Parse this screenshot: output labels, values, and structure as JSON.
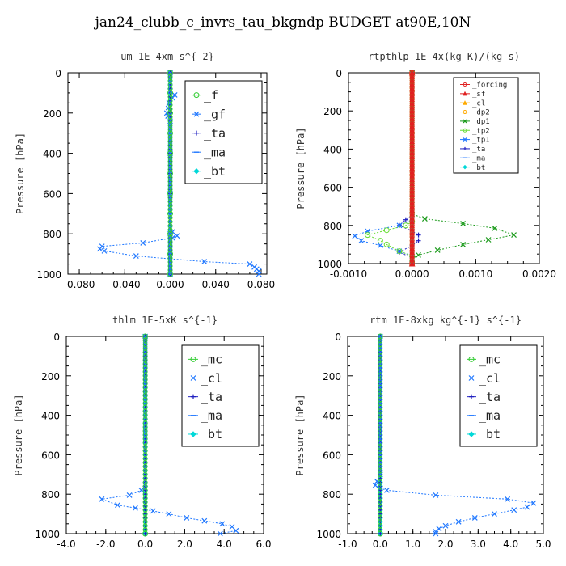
{
  "figure_title": "jan24_clubb_c_invrs_tau_bkgndp  BUDGET at90E,10N",
  "colors": {
    "green": "#33cc33",
    "dkgreen": "#1a9a1a",
    "blue": "#1f77ff",
    "navy": "#2020c0",
    "cyan": "#00d8d8",
    "red": "#e02020",
    "orange": "#ffaa00",
    "lightgreen": "#66dd33"
  },
  "chart_data": [
    {
      "type": "line",
      "title": "um  1E-4xm s^{-2}",
      "ylabel": "Pressure [hPa]",
      "xlim": [
        -0.09,
        0.085
      ],
      "ylim": [
        1000,
        0
      ],
      "y_inverted": true,
      "xticks": [
        -0.08,
        -0.04,
        0.0,
        0.04,
        0.08
      ],
      "xtick_labels": [
        "-0.080",
        "-0.040",
        "0.000",
        "0.040",
        "0.080"
      ],
      "yticks": [
        0,
        200,
        400,
        600,
        800,
        1000
      ],
      "ytick_labels": [
        "0",
        "200",
        "400",
        "600",
        "800",
        "1000"
      ],
      "legend_position": "top-right",
      "legend_font": 15,
      "series": [
        {
          "name": "_f",
          "color": "#33cc33",
          "marker": "circle",
          "points": [
            [
              0,
              0
            ],
            [
              0,
              100
            ],
            [
              0,
              200
            ],
            [
              0,
              300
            ],
            [
              0,
              400
            ],
            [
              0,
              500
            ],
            [
              0,
              600
            ],
            [
              0,
              700
            ],
            [
              0,
              800
            ],
            [
              0,
              900
            ],
            [
              0,
              1000
            ]
          ]
        },
        {
          "name": "_gf",
          "color": "#1f77ff",
          "marker": "x",
          "points": [
            [
              0,
              0
            ],
            [
              0,
              90
            ],
            [
              0.004,
              110
            ],
            [
              0.002,
              125
            ],
            [
              -0.001,
              150
            ],
            [
              -0.003,
              200
            ],
            [
              -0.002,
              215
            ],
            [
              0,
              240
            ],
            [
              0,
              400
            ],
            [
              0,
              600
            ],
            [
              0,
              750
            ],
            [
              0,
              800
            ],
            [
              0,
              1000
            ]
          ]
        },
        {
          "name": "_ta",
          "color": "#2020c0",
          "marker": "plus",
          "points": [
            [
              0,
              0
            ],
            [
              0,
              400
            ],
            [
              0,
              800
            ],
            [
              0,
              1000
            ]
          ]
        },
        {
          "name": "_ma",
          "color": "#1f77ff",
          "marker": "dash",
          "points": [
            [
              0,
              0
            ],
            [
              0,
              1000
            ]
          ]
        },
        {
          "name": "_bt",
          "color": "#00d8d8",
          "marker": "diamond",
          "points": [
            [
              0,
              0
            ],
            [
              0,
              1000
            ]
          ]
        },
        {
          "name": "",
          "color": "#1f77ff",
          "marker": "x",
          "points": [
            [
              0,
              770
            ],
            [
              0.002,
              790
            ],
            [
              0.006,
              810
            ],
            [
              0.002,
              820
            ],
            [
              -0.024,
              845
            ],
            [
              -0.06,
              862
            ],
            [
              -0.062,
              875
            ],
            [
              -0.058,
              885
            ],
            [
              -0.03,
              910
            ],
            [
              0.03,
              938
            ],
            [
              0.07,
              950
            ],
            [
              0.074,
              965
            ],
            [
              0.076,
              975
            ],
            [
              0.078,
              985
            ],
            [
              0.078,
              1000
            ]
          ]
        }
      ]
    },
    {
      "type": "line",
      "title": "rtpthlp  1E-4x(kg K)/(kg s)",
      "ylabel": "Pressure [hPa]",
      "xlim": [
        -0.001,
        0.002
      ],
      "ylim": [
        1000,
        0
      ],
      "y_inverted": true,
      "xticks": [
        -0.001,
        0.0,
        0.001,
        0.002
      ],
      "xtick_labels": [
        "-0.0010",
        "0.0000",
        "0.0010",
        "0.0020"
      ],
      "yticks": [
        0,
        200,
        400,
        600,
        800,
        1000
      ],
      "ytick_labels": [
        "0",
        "200",
        "400",
        "600",
        "800",
        "1000"
      ],
      "legend_position": "top-right",
      "legend_font": 9,
      "series": [
        {
          "name": "_forcing",
          "color": "#e02020",
          "marker": "circle",
          "points": [
            [
              0,
              0
            ],
            [
              0,
              1000
            ]
          ]
        },
        {
          "name": "_sf",
          "color": "#e02020",
          "marker": "triangle",
          "points": [
            [
              0,
              0
            ],
            [
              0,
              1000
            ]
          ]
        },
        {
          "name": "_cl",
          "color": "#ffaa00",
          "marker": "triangle",
          "points": [
            [
              0,
              0
            ],
            [
              0,
              1000
            ]
          ]
        },
        {
          "name": "_dp2",
          "color": "#ffaa00",
          "marker": "circle",
          "points": [
            [
              0,
              0
            ],
            [
              0,
              1000
            ]
          ]
        },
        {
          "name": "_dp1",
          "color": "#1a9a1a",
          "marker": "x",
          "points": [
            [
              0,
              0
            ],
            [
              0,
              740
            ],
            [
              0.0002,
              765
            ],
            [
              0.0008,
              790
            ],
            [
              0.0013,
              815
            ],
            [
              0.0016,
              850
            ],
            [
              0.0012,
              875
            ],
            [
              0.0008,
              900
            ],
            [
              0.0004,
              930
            ],
            [
              0.0001,
              955
            ],
            [
              0,
              975
            ],
            [
              0,
              1000
            ]
          ]
        },
        {
          "name": "_tp2",
          "color": "#66dd33",
          "marker": "circle",
          "points": [
            [
              0,
              0
            ],
            [
              0,
              780
            ],
            [
              -0.0001,
              800
            ],
            [
              -0.0004,
              825
            ],
            [
              -0.0007,
              850
            ],
            [
              -0.0005,
              880
            ],
            [
              -0.0004,
              900
            ],
            [
              -0.0002,
              935
            ],
            [
              0,
              960
            ],
            [
              0,
              1000
            ]
          ]
        },
        {
          "name": "_tp1",
          "color": "#1f77ff",
          "marker": "x",
          "points": [
            [
              0,
              0
            ],
            [
              0,
              770
            ],
            [
              -0.0002,
              800
            ],
            [
              -0.0007,
              830
            ],
            [
              -0.0009,
              855
            ],
            [
              -0.0008,
              880
            ],
            [
              -0.0005,
              905
            ],
            [
              -0.0002,
              935
            ],
            [
              0,
              960
            ],
            [
              0,
              1000
            ]
          ]
        },
        {
          "name": "_ta",
          "color": "#2020c0",
          "marker": "plus",
          "points": [
            [
              0,
              0
            ],
            [
              0,
              750
            ],
            [
              -0.0001,
              770
            ],
            [
              -0.0002,
              800
            ],
            [
              0,
              830
            ],
            [
              0.0001,
              850
            ],
            [
              0.0001,
              880
            ],
            [
              0,
              905
            ],
            [
              -0.0002,
              940
            ],
            [
              0,
              970
            ],
            [
              0,
              1000
            ]
          ]
        },
        {
          "name": "_ma",
          "color": "#1f77ff",
          "marker": "dash",
          "points": [
            [
              0,
              0
            ],
            [
              0,
              1000
            ]
          ]
        },
        {
          "name": "_bt",
          "color": "#00d8d8",
          "marker": "diamond",
          "points": [
            [
              0,
              0
            ],
            [
              0,
              1000
            ]
          ]
        }
      ]
    },
    {
      "type": "line",
      "title": "thlm  1E-5xK s^{-1}",
      "ylabel": "Pressure [hPa]",
      "xlim": [
        -4,
        6
      ],
      "ylim": [
        1000,
        0
      ],
      "y_inverted": true,
      "xticks": [
        -4,
        -2,
        0,
        2,
        4,
        6
      ],
      "xtick_labels": [
        "-4.0",
        "-2.0",
        "0.0",
        "2.0",
        "4.0",
        "6.0"
      ],
      "yticks": [
        0,
        200,
        400,
        600,
        800,
        1000
      ],
      "ytick_labels": [
        "0",
        "200",
        "400",
        "600",
        "800",
        "1000"
      ],
      "legend_position": "top-right",
      "legend_font": 15,
      "series": [
        {
          "name": "_mc",
          "color": "#33cc33",
          "marker": "circle",
          "points": [
            [
              0,
              0
            ],
            [
              0,
              1000
            ]
          ]
        },
        {
          "name": "_cl",
          "color": "#1f77ff",
          "marker": "x",
          "points": [
            [
              0,
              0
            ],
            [
              0,
              770
            ],
            [
              -0.2,
              780
            ],
            [
              -0.8,
              805
            ],
            [
              -2.2,
              825
            ],
            [
              -1.4,
              855
            ],
            [
              -0.5,
              870
            ],
            [
              0.4,
              885
            ],
            [
              1.2,
              900
            ],
            [
              2.1,
              920
            ],
            [
              3,
              935
            ],
            [
              3.9,
              950
            ],
            [
              4.4,
              965
            ],
            [
              4.6,
              985
            ],
            [
              3.8,
              1000
            ]
          ]
        },
        {
          "name": "_ta",
          "color": "#2020c0",
          "marker": "plus",
          "points": [
            [
              0,
              0
            ],
            [
              0,
              1000
            ]
          ]
        },
        {
          "name": "_ma",
          "color": "#1f77ff",
          "marker": "dash",
          "points": [
            [
              0,
              0
            ],
            [
              0,
              1000
            ]
          ]
        },
        {
          "name": "_bt",
          "color": "#00d8d8",
          "marker": "diamond",
          "points": [
            [
              0,
              0
            ],
            [
              0,
              1000
            ]
          ]
        }
      ]
    },
    {
      "type": "line",
      "title": "rtm  1E-8xkg kg^{-1} s^{-1}",
      "ylabel": "Pressure [hPa]",
      "xlim": [
        -1,
        5
      ],
      "ylim": [
        1000,
        0
      ],
      "y_inverted": true,
      "xticks": [
        -1,
        0,
        1,
        2,
        3,
        4,
        5
      ],
      "xtick_labels": [
        "-1.0",
        "0.0",
        "1.0",
        "2.0",
        "3.0",
        "4.0",
        "5.0"
      ],
      "yticks": [
        0,
        200,
        400,
        600,
        800,
        1000
      ],
      "ytick_labels": [
        "0",
        "200",
        "400",
        "600",
        "800",
        "1000"
      ],
      "legend_position": "top-right",
      "legend_font": 15,
      "series": [
        {
          "name": "_mc",
          "color": "#33cc33",
          "marker": "circle",
          "points": [
            [
              0,
              0
            ],
            [
              0,
              1000
            ]
          ]
        },
        {
          "name": "_cl",
          "color": "#1f77ff",
          "marker": "x",
          "points": [
            [
              0,
              0
            ],
            [
              0,
              700
            ],
            [
              -0.1,
              735
            ],
            [
              -0.15,
              755
            ],
            [
              0,
              770
            ],
            [
              0.2,
              780
            ],
            [
              1.7,
              805
            ],
            [
              3.9,
              825
            ],
            [
              4.7,
              845
            ],
            [
              4.5,
              865
            ],
            [
              4.1,
              880
            ],
            [
              3.5,
              900
            ],
            [
              2.9,
              920
            ],
            [
              2.4,
              940
            ],
            [
              2.0,
              960
            ],
            [
              1.8,
              975
            ],
            [
              1.7,
              990
            ],
            [
              1.7,
              1000
            ]
          ]
        },
        {
          "name": "_ta",
          "color": "#2020c0",
          "marker": "plus",
          "points": [
            [
              0,
              0
            ],
            [
              0,
              1000
            ]
          ]
        },
        {
          "name": "_ma",
          "color": "#1f77ff",
          "marker": "dash",
          "points": [
            [
              0,
              0
            ],
            [
              0,
              1000
            ]
          ]
        },
        {
          "name": "_bt",
          "color": "#00d8d8",
          "marker": "diamond",
          "points": [
            [
              0,
              0
            ],
            [
              0,
              1000
            ]
          ]
        }
      ]
    }
  ]
}
